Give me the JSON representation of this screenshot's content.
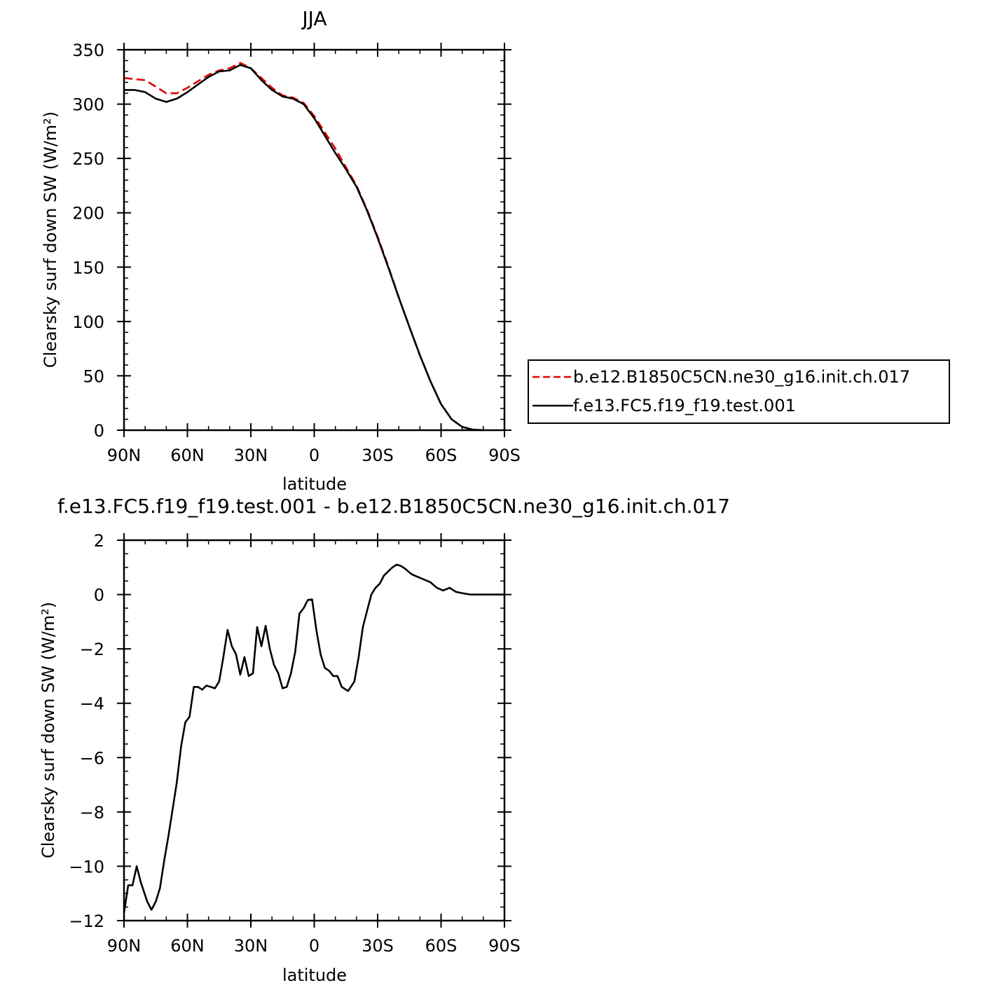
{
  "chart_data": [
    {
      "type": "line",
      "title": "JJA",
      "xlabel": "latitude",
      "ylabel": "Clearsky surf down SW (W/m²)",
      "xlim": [
        -90,
        90
      ],
      "ylim": [
        0,
        350
      ],
      "x_ticks": [
        {
          "value": -90,
          "label": "90N"
        },
        {
          "value": -60,
          "label": "60N"
        },
        {
          "value": -30,
          "label": "30N"
        },
        {
          "value": 0,
          "label": "0"
        },
        {
          "value": 30,
          "label": "30S"
        },
        {
          "value": 60,
          "label": "60S"
        },
        {
          "value": 90,
          "label": "90S"
        }
      ],
      "y_ticks": [
        0,
        50,
        100,
        150,
        200,
        250,
        300,
        350
      ],
      "legend_position": "right",
      "series": [
        {
          "name": "b.e12.B1850C5CN.ne30_g16.init.ch.017",
          "color": "#e00000",
          "dash": "dashed",
          "x": [
            -90,
            -85,
            -80,
            -75,
            -70,
            -65,
            -60,
            -55,
            -50,
            -45,
            -40,
            -35,
            -30,
            -25,
            -20,
            -15,
            -10,
            -5,
            0,
            5,
            10,
            15,
            20,
            25,
            30,
            35,
            40,
            45,
            50,
            55,
            60,
            65,
            70,
            75,
            80
          ],
          "y": [
            324,
            323,
            322,
            316,
            310,
            310,
            315,
            321,
            327,
            331,
            333,
            338,
            333,
            324,
            315,
            308,
            306,
            301,
            289,
            274,
            259,
            242,
            225,
            203,
            178,
            151,
            122,
            95,
            69,
            45,
            24,
            10,
            3,
            0.5,
            0
          ]
        },
        {
          "name": "f.e13.FC5.f19_f19.test.001",
          "color": "#000000",
          "dash": "solid",
          "x": [
            -90,
            -85,
            -80,
            -75,
            -70,
            -65,
            -60,
            -55,
            -50,
            -45,
            -40,
            -35,
            -30,
            -25,
            -20,
            -15,
            -10,
            -5,
            0,
            5,
            10,
            15,
            20,
            25,
            30,
            35,
            40,
            45,
            50,
            55,
            60,
            65,
            70,
            75,
            80
          ],
          "y": [
            313,
            313,
            311,
            305,
            302,
            305,
            311,
            318,
            325,
            330,
            331,
            336,
            333,
            322,
            313,
            307,
            305,
            300,
            287,
            271,
            255,
            240,
            224,
            202,
            177,
            150,
            122,
            95,
            69,
            45,
            24,
            10,
            3,
            0.5,
            0
          ]
        }
      ]
    },
    {
      "type": "line",
      "title": "f.e13.FC5.f19_f19.test.001 - b.e12.B1850C5CN.ne30_g16.init.ch.017",
      "xlabel": "latitude",
      "ylabel": "Clearsky surf down SW (W/m²)",
      "xlim": [
        -90,
        90
      ],
      "ylim": [
        -12,
        2
      ],
      "x_ticks": [
        {
          "value": -90,
          "label": "90N"
        },
        {
          "value": -60,
          "label": "60N"
        },
        {
          "value": -30,
          "label": "30N"
        },
        {
          "value": 0,
          "label": "0"
        },
        {
          "value": 30,
          "label": "30S"
        },
        {
          "value": 60,
          "label": "60S"
        },
        {
          "value": 90,
          "label": "90S"
        }
      ],
      "y_ticks": [
        -12,
        -10,
        -8,
        -6,
        -4,
        -2,
        0,
        2
      ],
      "series": [
        {
          "color": "#000000",
          "dash": "solid",
          "x": [
            -90,
            -88,
            -86,
            -84,
            -82,
            -79,
            -77,
            -75,
            -73,
            -71,
            -69,
            -67,
            -65,
            -63,
            -61,
            -59,
            -57,
            -55,
            -53,
            -51,
            -49,
            -47,
            -45,
            -43,
            -41,
            -39,
            -37,
            -35,
            -33,
            -31,
            -29,
            -27,
            -25,
            -23,
            -21,
            -19,
            -17,
            -15,
            -13,
            -11,
            -9,
            -7,
            -5,
            -3,
            -1,
            1,
            3,
            5,
            7,
            9,
            11,
            13,
            16,
            19,
            21,
            23,
            25,
            27,
            29,
            31,
            33,
            35,
            37,
            39,
            41,
            43,
            46,
            49,
            52,
            55,
            58,
            61,
            64,
            67,
            70,
            74,
            78,
            82,
            86,
            90
          ],
          "y": [
            -11.7,
            -10.7,
            -10.7,
            -10.0,
            -10.6,
            -11.3,
            -11.6,
            -11.3,
            -10.8,
            -9.8,
            -8.9,
            -7.9,
            -6.9,
            -5.6,
            -4.7,
            -4.5,
            -3.4,
            -3.4,
            -3.5,
            -3.35,
            -3.4,
            -3.45,
            -3.2,
            -2.3,
            -1.3,
            -1.9,
            -2.2,
            -2.95,
            -2.3,
            -3.0,
            -2.9,
            -1.2,
            -1.9,
            -1.15,
            -2.0,
            -2.6,
            -2.9,
            -3.45,
            -3.4,
            -2.9,
            -2.1,
            -0.7,
            -0.5,
            -0.2,
            -0.18,
            -1.3,
            -2.2,
            -2.7,
            -2.8,
            -3.0,
            -3.0,
            -3.4,
            -3.55,
            -3.2,
            -2.3,
            -1.2,
            -0.6,
            0.0,
            0.25,
            0.4,
            0.7,
            0.85,
            1.0,
            1.1,
            1.05,
            0.95,
            0.75,
            0.65,
            0.55,
            0.45,
            0.25,
            0.15,
            0.25,
            0.1,
            0.05,
            0.0,
            0.0,
            0.0,
            0.0,
            0.0
          ]
        }
      ]
    }
  ]
}
